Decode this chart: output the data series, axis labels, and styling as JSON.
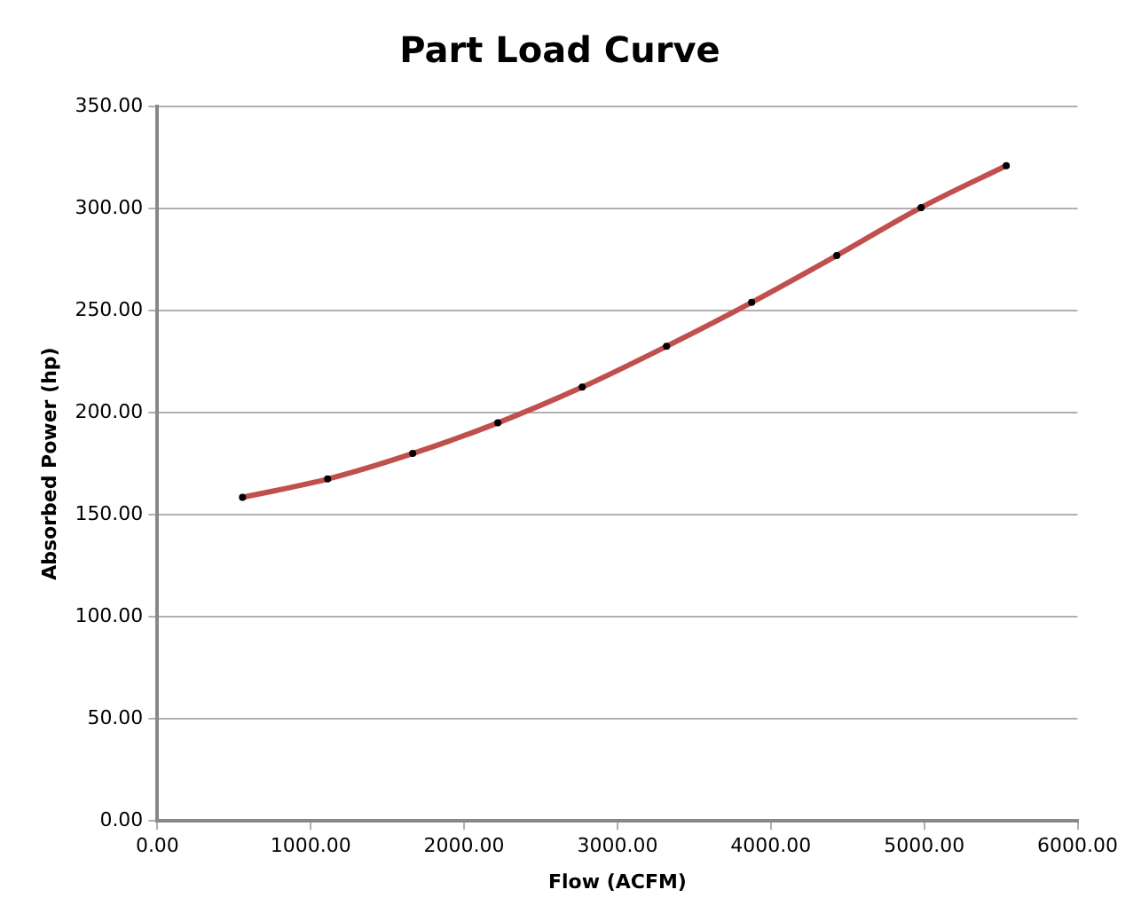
{
  "chart_data": {
    "type": "line",
    "title": "Part Load Curve",
    "xlabel": "Flow (ACFM)",
    "ylabel": "Absorbed Power (hp)",
    "x": [
      555,
      1110,
      1665,
      2220,
      2770,
      3320,
      3875,
      4430,
      4980,
      5535
    ],
    "series": [
      {
        "color": "#c0504d",
        "values": [
          158.5,
          167.5,
          180,
          195,
          212.5,
          232.5,
          254,
          277,
          300.5,
          321
        ]
      }
    ],
    "xlim": [
      0,
      6000
    ],
    "xticks": [
      {
        "value": 0,
        "label": "0.00"
      },
      {
        "value": 1000,
        "label": "1000.00"
      },
      {
        "value": 2000,
        "label": "2000.00"
      },
      {
        "value": 3000,
        "label": "3000.00"
      },
      {
        "value": 4000,
        "label": "4000.00"
      },
      {
        "value": 5000,
        "label": "5000.00"
      },
      {
        "value": 6000,
        "label": "6000.00"
      }
    ],
    "ylim": [
      0,
      350
    ],
    "yticks": [
      {
        "value": 0,
        "label": "0.00"
      },
      {
        "value": 50,
        "label": "50.00"
      },
      {
        "value": 100,
        "label": "100.00"
      },
      {
        "value": 150,
        "label": "150.00"
      },
      {
        "value": 200,
        "label": "200.00"
      },
      {
        "value": 250,
        "label": "250.00"
      },
      {
        "value": 300,
        "label": "300.00"
      },
      {
        "value": 350,
        "label": "350.00"
      }
    ],
    "grid": "y",
    "legend": false,
    "marker": "circle",
    "line_style": "solid"
  }
}
